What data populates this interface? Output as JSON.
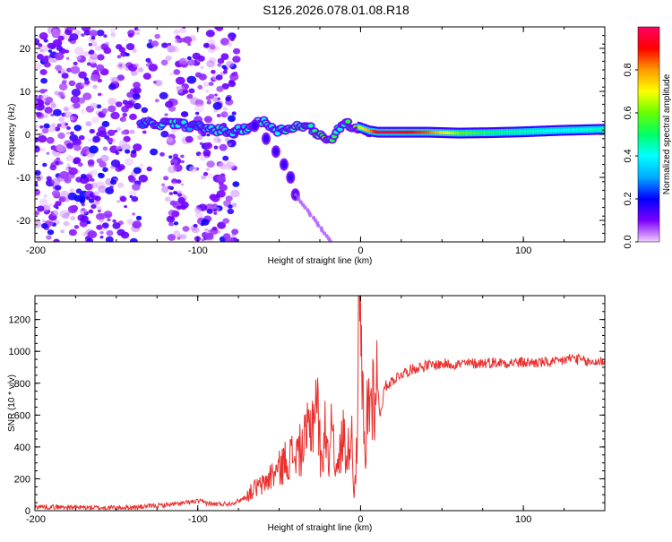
{
  "figure_title": "S126.2026.078.01.08.R18",
  "chart_data": [
    {
      "type": "heatmap",
      "name": "spectrogram",
      "xlabel": "Height of straight line (km)",
      "ylabel": "Frequency (Hz)",
      "xlim": [
        -200,
        150
      ],
      "ylim": [
        -25,
        25
      ],
      "x_ticks": [
        -200,
        -100,
        0,
        100
      ],
      "x_tick_labels": [
        "-200",
        "-100",
        "0",
        "100"
      ],
      "y_ticks": [
        -20,
        -10,
        0,
        10,
        20
      ],
      "y_tick_labels": [
        "-20",
        "-10",
        "0",
        "10",
        "20"
      ],
      "colorbar": {
        "label": "Normalized spectral amplitude",
        "range": [
          0,
          1
        ],
        "ticks": [
          0.0,
          0.2,
          0.4,
          0.6,
          0.8
        ],
        "tick_labels": [
          "0.0",
          "0.2",
          "0.4",
          "0.6",
          "0.8"
        ],
        "colors": [
          "#f4ccff",
          "#7a00ff",
          "#0000ff",
          "#00aaff",
          "#00ffff",
          "#00ff66",
          "#66ff00",
          "#ffff00",
          "#ff9900",
          "#ff0000",
          "#ff0066"
        ]
      },
      "ridge": {
        "description": "dominant frequency vs height",
        "x": [
          -135,
          -125,
          -115,
          -105,
          -95,
          -85,
          -78,
          -70,
          -60,
          -50,
          -40,
          -30,
          -22,
          -18,
          -15,
          -10,
          -5,
          0,
          5,
          10,
          20,
          40,
          60,
          80,
          100,
          120,
          150
        ],
        "y": [
          2.5,
          2.5,
          2.5,
          2.0,
          1.5,
          0.8,
          0.5,
          1.5,
          3.0,
          0.8,
          2.0,
          1.5,
          -1.5,
          -1.5,
          1.0,
          2.5,
          2.0,
          1.5,
          0.8,
          0.5,
          0.5,
          0.5,
          0.3,
          0.4,
          0.6,
          0.9,
          1.2
        ],
        "amplitude": [
          0.3,
          0.35,
          0.45,
          0.3,
          0.35,
          0.4,
          0.35,
          0.4,
          0.45,
          0.4,
          0.45,
          0.5,
          0.6,
          0.5,
          0.45,
          0.5,
          0.55,
          0.7,
          0.8,
          0.95,
          0.95,
          0.85,
          0.6,
          0.5,
          0.45,
          0.4,
          0.45
        ]
      },
      "side_branch": {
        "x": [
          -65,
          -58,
          -52,
          -47,
          -43,
          -40
        ],
        "y": [
          2.0,
          -1.0,
          -4.0,
          -7.0,
          -10.0,
          -14.0
        ]
      },
      "noise_region_km": [
        -200,
        -85
      ]
    },
    {
      "type": "line",
      "name": "snr",
      "xlabel": "Height of straight line (km)",
      "ylabel": "SNR (10 * v/v)",
      "xlim": [
        -200,
        150
      ],
      "ylim": [
        0,
        1350
      ],
      "x_ticks": [
        -200,
        -100,
        0,
        100
      ],
      "x_tick_labels": [
        "-200",
        "-100",
        "0",
        "100"
      ],
      "y_ticks": [
        0,
        200,
        400,
        600,
        800,
        1000,
        1200
      ],
      "y_tick_labels": [
        "0",
        "200",
        "400",
        "600",
        "800",
        "1000",
        "1200"
      ],
      "color": "#e8302e",
      "series": [
        {
          "name": "SNR",
          "x": [
            -200,
            -180,
            -160,
            -140,
            -120,
            -110,
            -100,
            -90,
            -80,
            -75,
            -70,
            -65,
            -60,
            -55,
            -50,
            -45,
            -40,
            -35,
            -30,
            -27,
            -24,
            -22,
            -20,
            -17,
            -15,
            -12,
            -10,
            -8,
            -6,
            -4,
            -2,
            -1,
            2,
            3,
            4,
            6,
            8,
            10,
            12,
            15,
            20,
            25,
            30,
            35,
            40,
            50,
            60,
            80,
            100,
            120,
            130,
            140,
            150
          ],
          "y": [
            25,
            22,
            18,
            20,
            35,
            45,
            60,
            40,
            45,
            60,
            90,
            140,
            160,
            220,
            260,
            330,
            350,
            400,
            550,
            750,
            250,
            580,
            300,
            650,
            200,
            400,
            500,
            300,
            600,
            120,
            400,
            1300,
            500,
            200,
            650,
            700,
            750,
            820,
            600,
            780,
            820,
            860,
            880,
            900,
            910,
            920,
            920,
            930,
            930,
            930,
            960,
            930,
            940
          ]
        }
      ]
    }
  ]
}
